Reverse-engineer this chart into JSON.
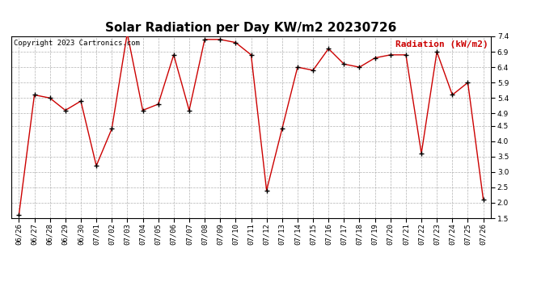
{
  "title": "Solar Radiation per Day KW/m2 20230726",
  "copyright": "Copyright 2023 Cartronics.com",
  "legend_label": "Radiation (kW/m2)",
  "dates": [
    "06/26",
    "06/27",
    "06/28",
    "06/29",
    "06/30",
    "07/01",
    "07/02",
    "07/03",
    "07/04",
    "07/05",
    "07/06",
    "07/07",
    "07/08",
    "07/09",
    "07/10",
    "07/11",
    "07/12",
    "07/13",
    "07/14",
    "07/15",
    "07/16",
    "07/17",
    "07/18",
    "07/19",
    "07/20",
    "07/21",
    "07/22",
    "07/23",
    "07/24",
    "07/25",
    "07/26"
  ],
  "values": [
    1.6,
    5.5,
    5.4,
    5.0,
    5.3,
    3.2,
    4.4,
    7.5,
    5.0,
    5.2,
    6.8,
    5.0,
    7.3,
    7.3,
    7.2,
    6.8,
    2.4,
    4.4,
    6.4,
    6.3,
    7.0,
    6.5,
    6.4,
    6.7,
    6.8,
    6.8,
    3.6,
    6.9,
    5.5,
    5.9,
    2.1
  ],
  "line_color": "#cc0000",
  "marker_color": "#000000",
  "grid_color": "#aaaaaa",
  "background_color": "#ffffff",
  "ylim_min": 1.5,
  "ylim_max": 7.4,
  "yticks": [
    1.5,
    2.0,
    2.5,
    3.0,
    3.5,
    4.0,
    4.5,
    4.9,
    5.4,
    5.9,
    6.4,
    6.9,
    7.4
  ],
  "title_fontsize": 11,
  "copyright_fontsize": 6.5,
  "legend_fontsize": 8,
  "tick_fontsize": 6.5
}
